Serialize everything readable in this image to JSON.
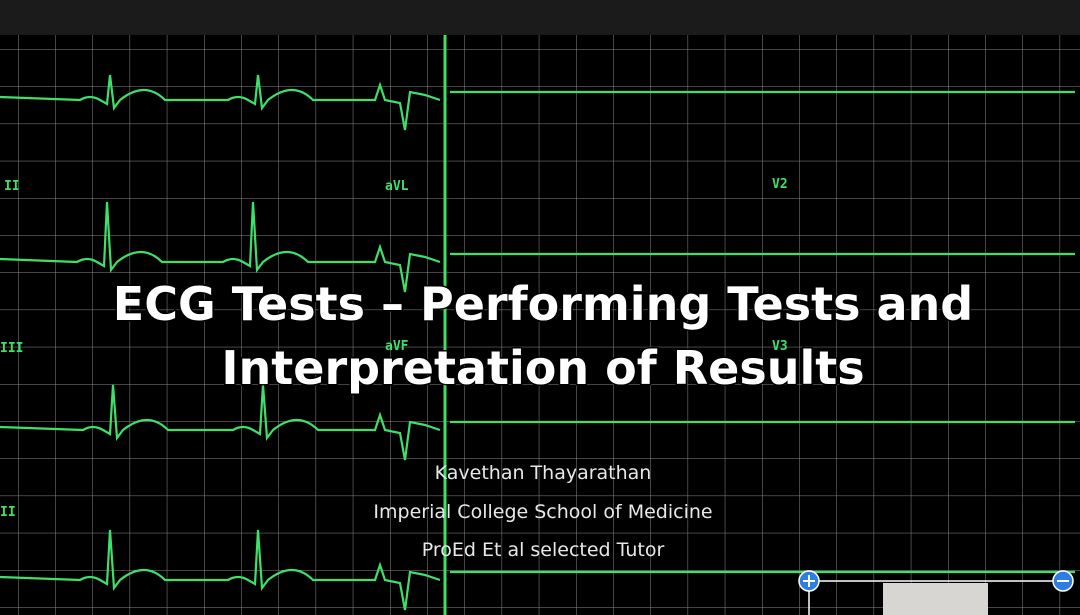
{
  "slide": {
    "title_lines": [
      "ECG Tests – Performing Tests and",
      "Interpretation of Results"
    ],
    "author_lines": [
      "Kavethan Thayarathan",
      "Imperial College School of Medicine",
      "ProEd Et al selected Tutor"
    ],
    "lead_labels": [
      "II",
      "aVL",
      "V2",
      "III",
      "aVF",
      "V3",
      "II"
    ]
  }
}
